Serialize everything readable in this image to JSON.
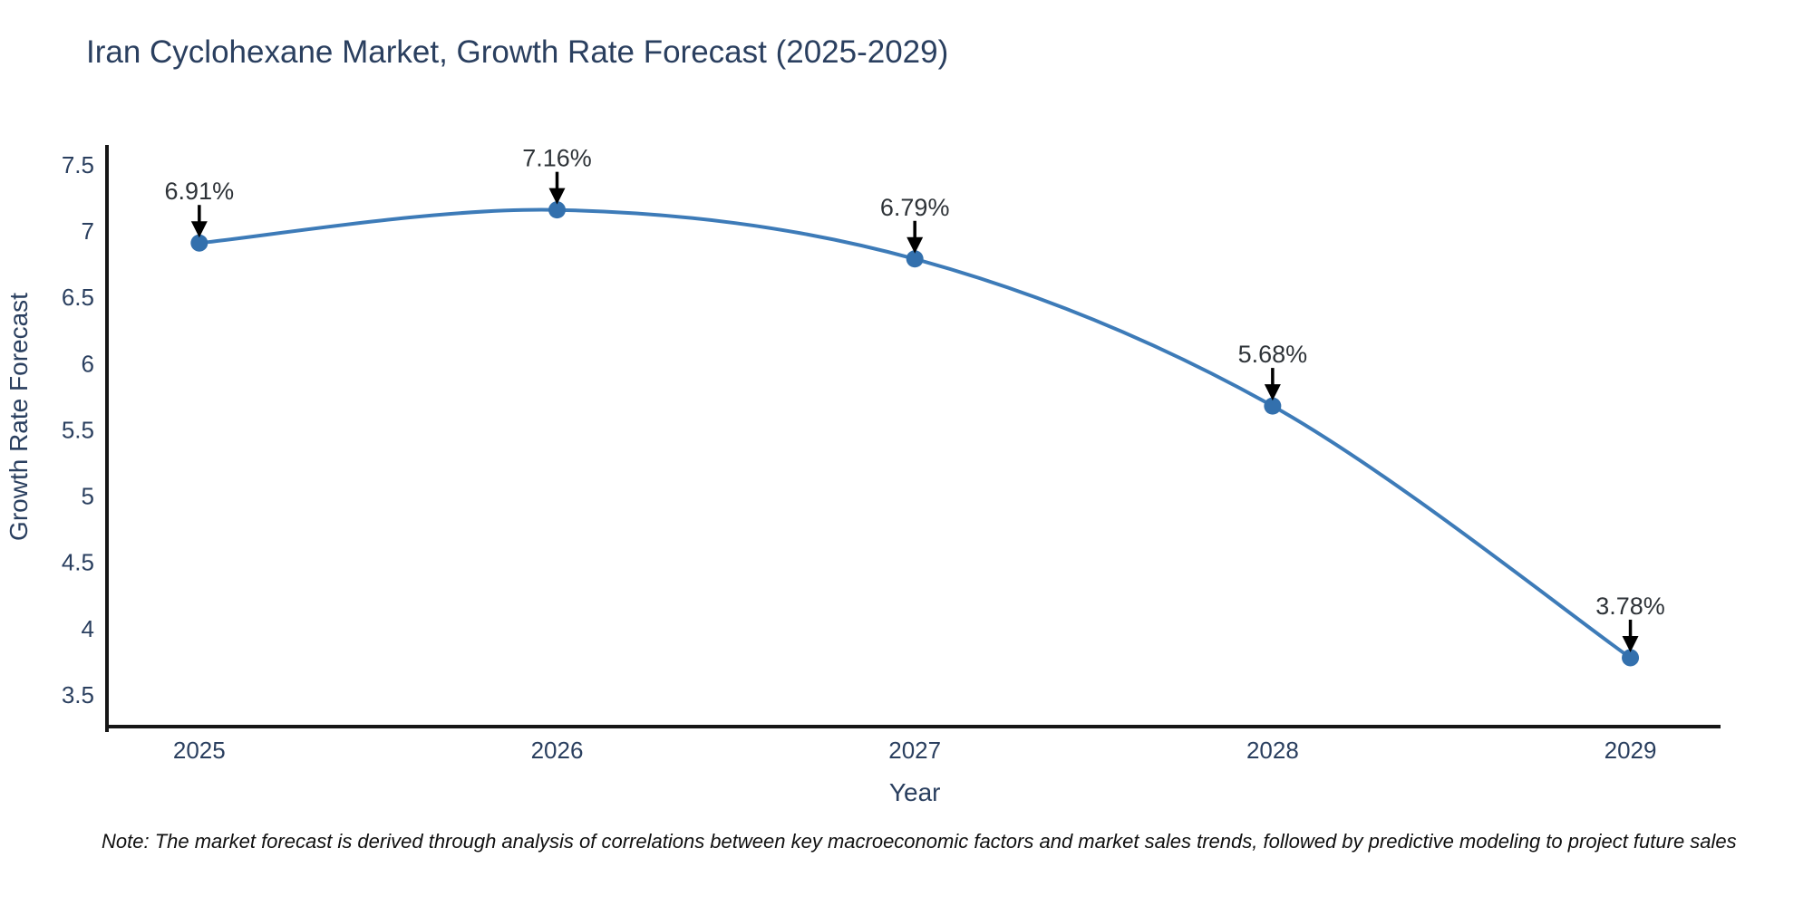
{
  "title": "Iran Cyclohexane Market, Growth Rate Forecast (2025-2029)",
  "footnote": "Note: The market forecast is derived through analysis of correlations between key macroeconomic factors and market sales trends, followed by predictive modeling to project future sales",
  "colors": {
    "background": "#ffffff",
    "title_text": "#2a3f5f",
    "axis_text": "#2a3f5f",
    "axis_line": "#161616",
    "line": "#3d7bb8",
    "marker": "#3370ad",
    "annotation_text": "#2e3338",
    "arrow": "#000000"
  },
  "chart_data": {
    "type": "line",
    "title": "Iran Cyclohexane Market, Growth Rate Forecast (2025-2029)",
    "xlabel": "Year",
    "ylabel": "Growth Rate Forecast",
    "x": [
      2025,
      2026,
      2027,
      2028,
      2029
    ],
    "values": [
      6.91,
      7.16,
      6.79,
      5.68,
      3.78
    ],
    "point_labels": [
      "6.91%",
      "7.16%",
      "6.79%",
      "5.68%",
      "3.78%"
    ],
    "yticks": [
      3.5,
      4,
      4.5,
      5,
      5.5,
      6,
      6.5,
      7,
      7.5
    ],
    "xlim": [
      2024.742,
      2029.252
    ],
    "ylim": [
      3.26,
      7.65
    ],
    "grid": false,
    "legend": "none",
    "line_shape": "spline",
    "annotation_style": "down-arrow-to-point"
  }
}
